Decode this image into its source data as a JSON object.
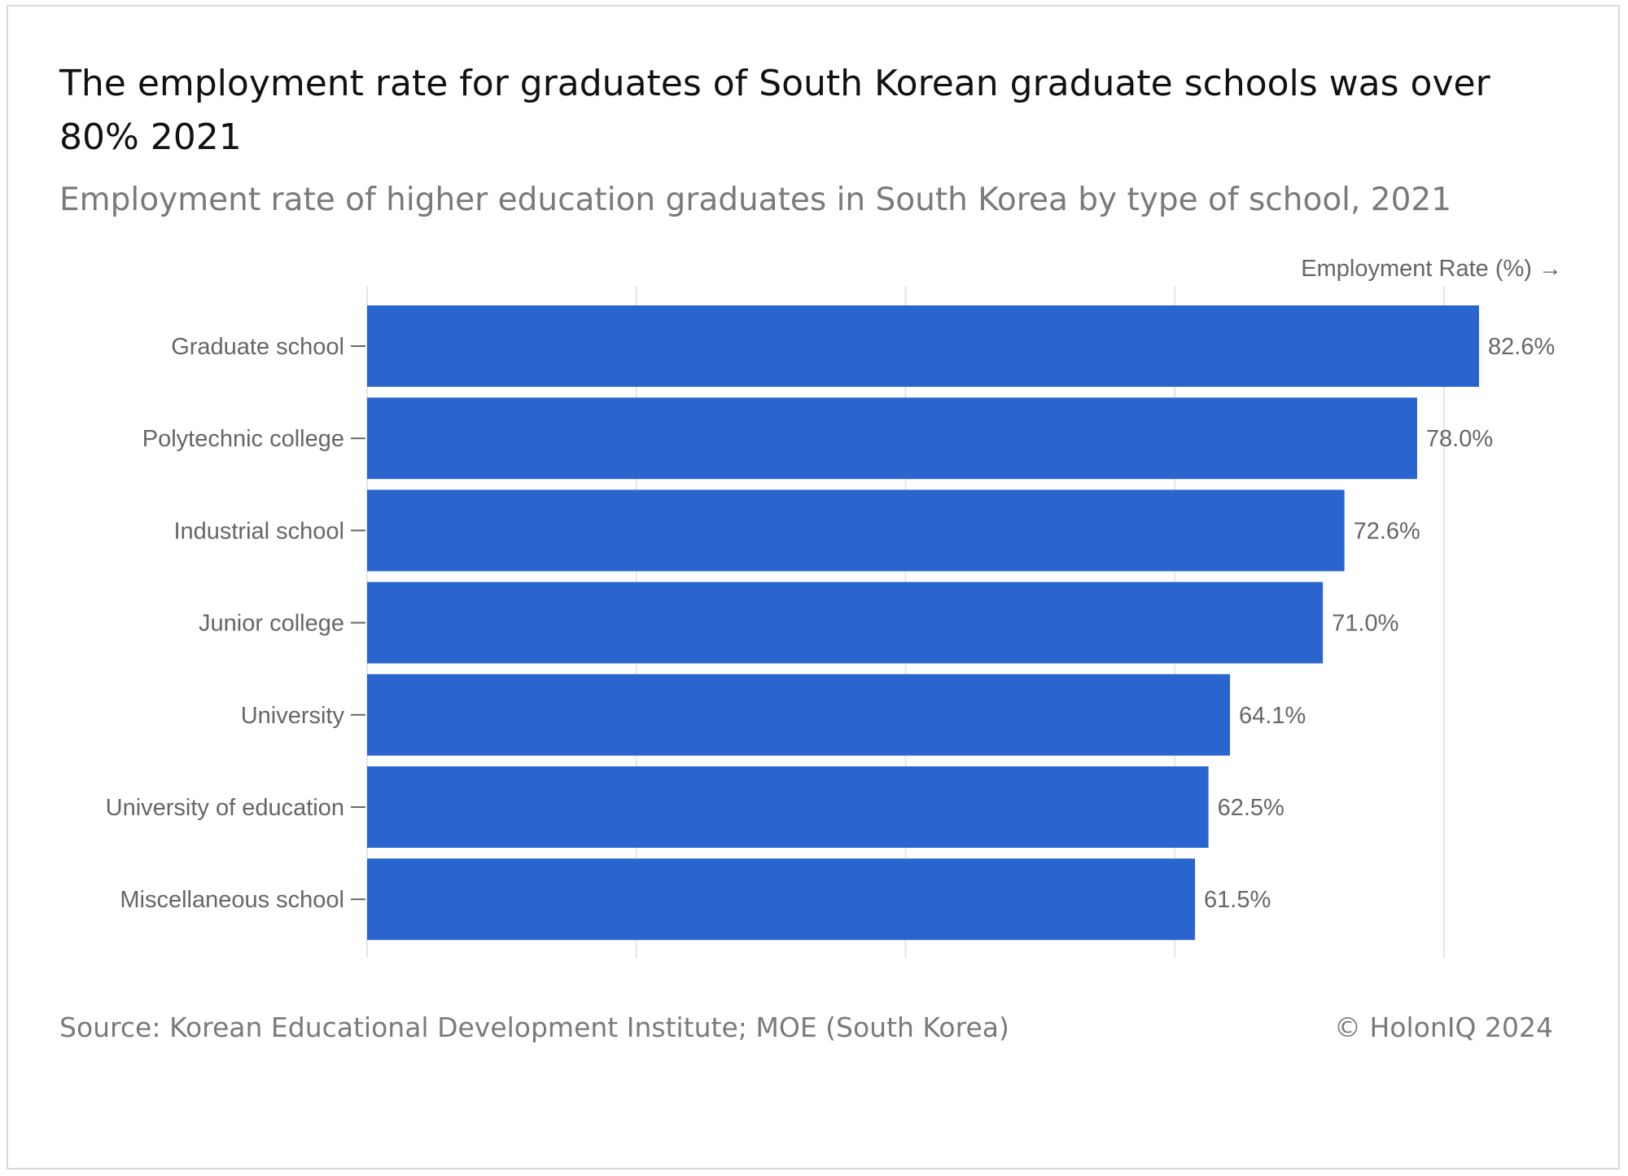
{
  "header": {
    "title": "The employment rate for graduates of South Korean graduate schools was over 80% 2021",
    "subtitle": "Employment rate of higher education graduates in South Korea by type of school, 2021"
  },
  "footer": {
    "source": "Source: Korean Educational Development Institute; MOE (South Korea)",
    "credit": "© HolonIQ 2024"
  },
  "colors": {
    "bar": "#2a64ce",
    "grid": "#e6e6e6"
  },
  "chart_data": {
    "type": "bar",
    "orientation": "horizontal",
    "xlabel": "Employment Rate (%) →",
    "categories": [
      "Graduate school",
      "Polytechnic college",
      "Industrial school",
      "Junior college",
      "University",
      "University of education",
      "Miscellaneous school"
    ],
    "values": [
      82.6,
      78.0,
      72.6,
      71.0,
      64.1,
      62.5,
      61.5
    ],
    "value_labels": [
      "82.6%",
      "78.0%",
      "72.6%",
      "71.0%",
      "64.1%",
      "62.5%",
      "61.5%"
    ],
    "xlim": [
      0,
      82.6
    ],
    "gridlines": [
      0,
      20,
      40,
      60,
      80
    ],
    "grid": true
  }
}
